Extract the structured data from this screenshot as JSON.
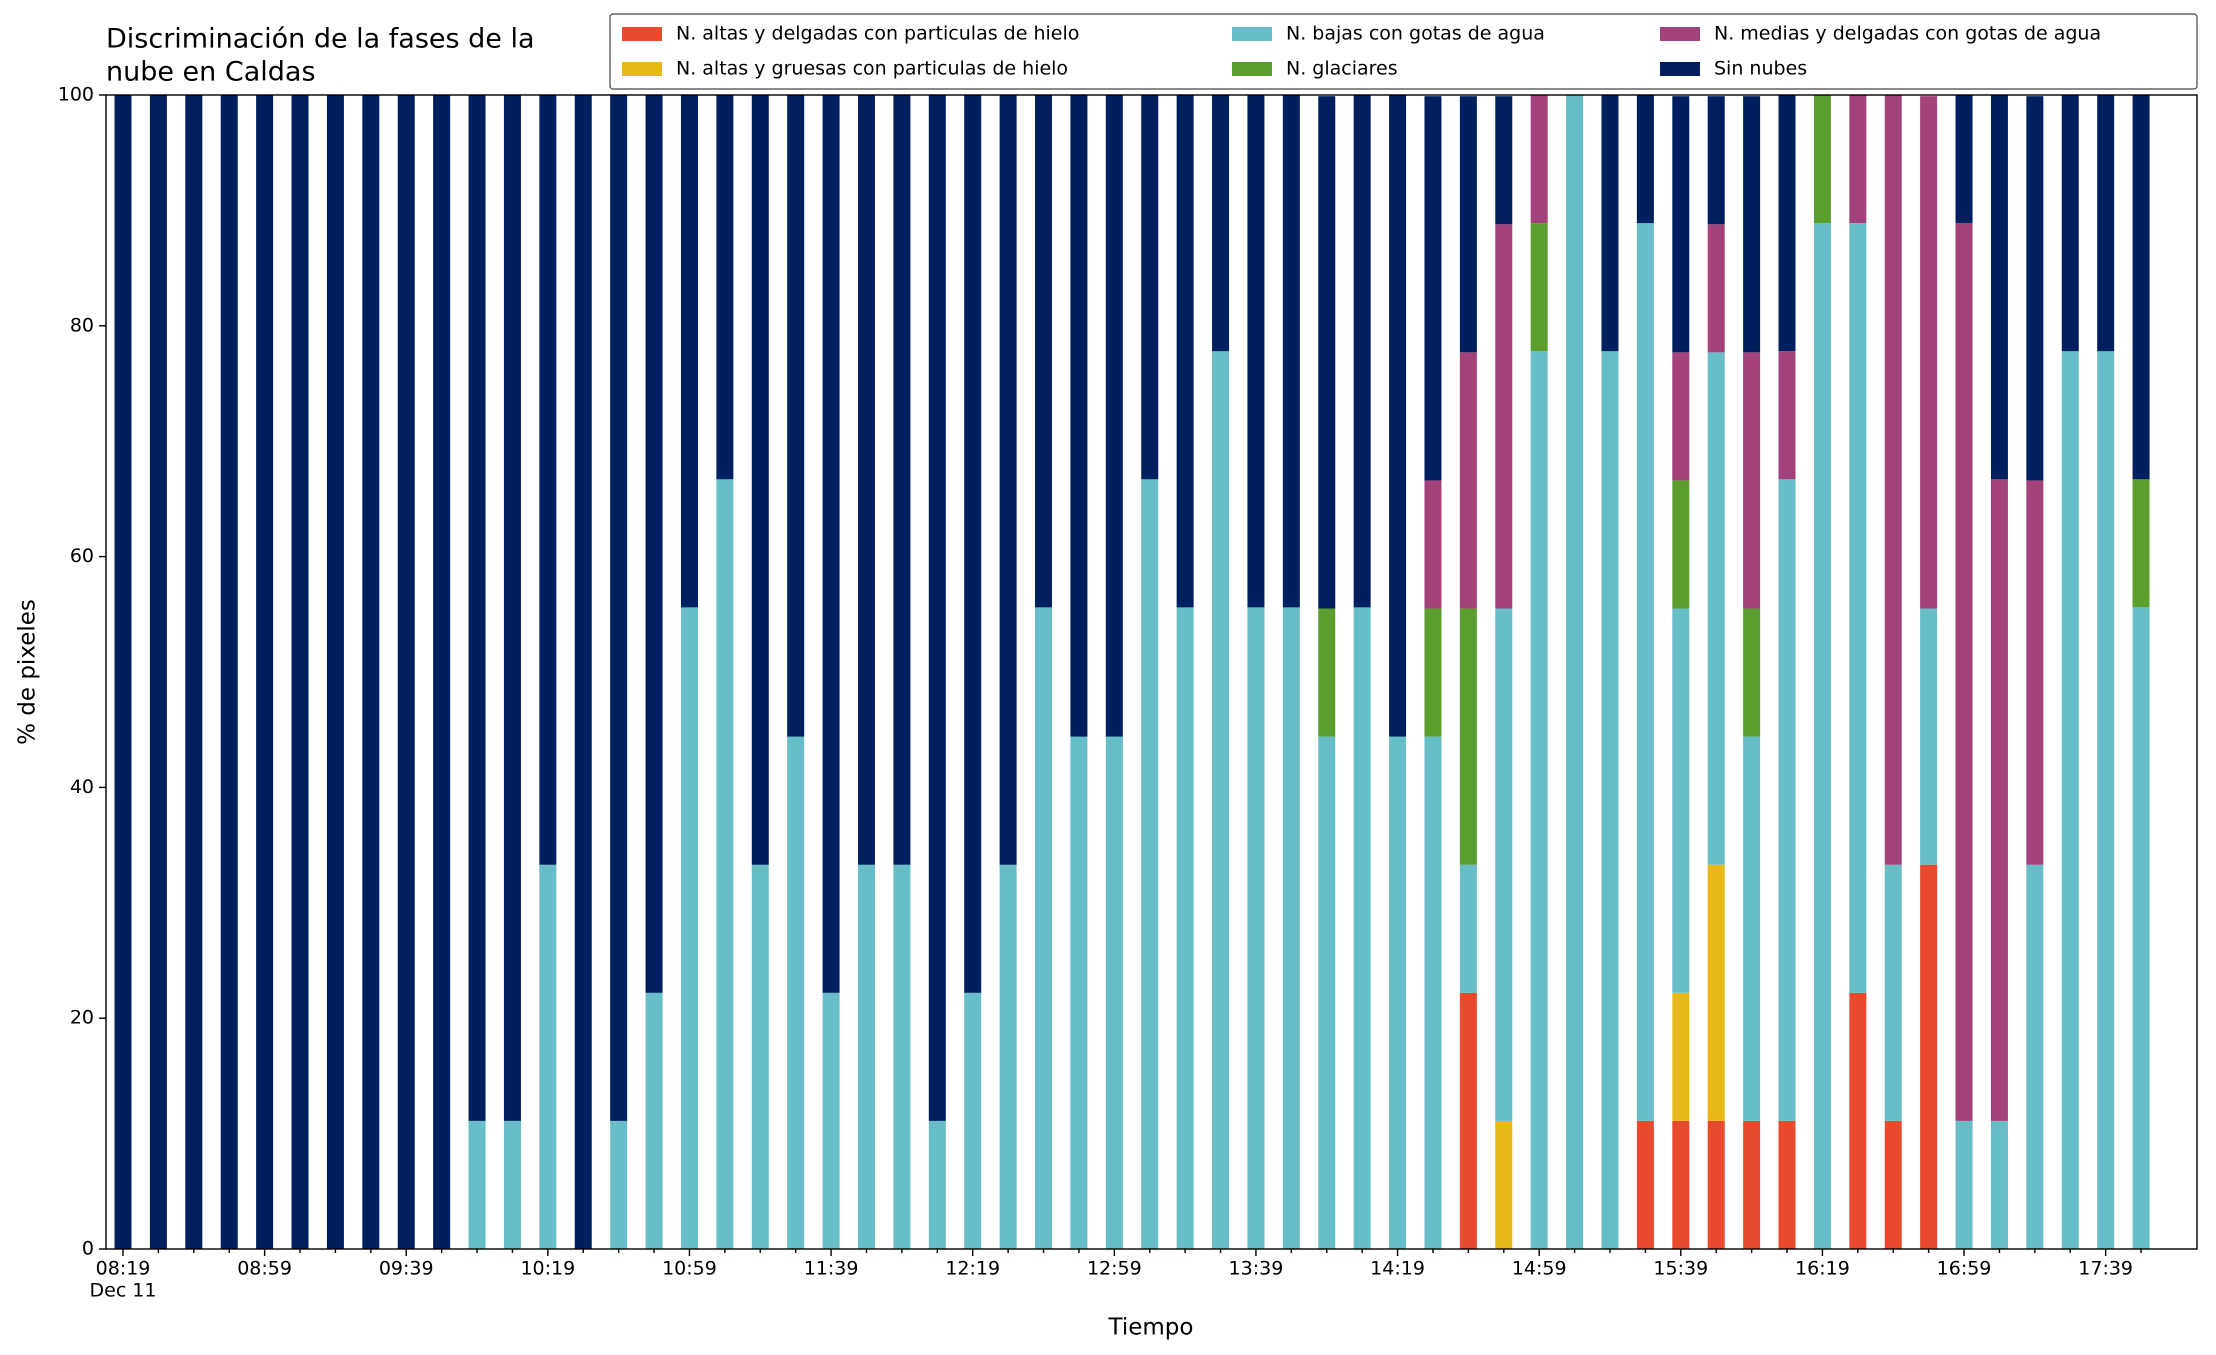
{
  "chart_data": {
    "type": "stacked_bar",
    "title": [
      "Discriminación de la fases de la",
      "nube en Caldas"
    ],
    "xlabel": "Tiempo",
    "ylabel": "% de pixeles",
    "x_sublabel": "Dec 11",
    "categories": [
      "08:19",
      null,
      null,
      null,
      "08:59",
      null,
      null,
      null,
      "09:39",
      null,
      null,
      null,
      "10:19",
      null,
      null,
      null,
      "10:59",
      null,
      null,
      null,
      "11:39",
      null,
      null,
      null,
      "12:19",
      null,
      null,
      null,
      "12:59",
      null,
      null,
      null,
      "13:39",
      null,
      null,
      null,
      "14:19",
      null,
      null,
      null,
      "14:59",
      null,
      null,
      null,
      "15:39",
      null,
      null,
      null,
      "16:19",
      null,
      null,
      null,
      "16:59",
      null,
      null,
      null,
      "17:39",
      null
    ],
    "ylim": [
      0,
      100
    ],
    "yticks": [
      0,
      20,
      40,
      60,
      80,
      100
    ],
    "legend": "upper right",
    "series": [
      {
        "name": "N. altas y delgadas con particulas de hielo",
        "color": "#e84a2e",
        "values": [
          0,
          0,
          0,
          0,
          0,
          0,
          0,
          0,
          0,
          0,
          0,
          0,
          0,
          0,
          0,
          0,
          0,
          0,
          0,
          0,
          0,
          0,
          0,
          0,
          0,
          0,
          0,
          0,
          0,
          0,
          0,
          0,
          0,
          0,
          0,
          0,
          0,
          0,
          22.2,
          0,
          0,
          0,
          0,
          11.1,
          11.1,
          11.1,
          11.1,
          11.1,
          0,
          22.2,
          11.1,
          33.3,
          0,
          0,
          0,
          0,
          0,
          0
        ]
      },
      {
        "name": "N. altas y gruesas con particulas de hielo",
        "color": "#e6b81a",
        "values": [
          0,
          0,
          0,
          0,
          0,
          0,
          0,
          0,
          0,
          0,
          0,
          0,
          0,
          0,
          0,
          0,
          0,
          0,
          0,
          0,
          0,
          0,
          0,
          0,
          0,
          0,
          0,
          0,
          0,
          0,
          0,
          0,
          0,
          0,
          0,
          0,
          0,
          0,
          0,
          11.1,
          0,
          0,
          0,
          0,
          11.1,
          22.2,
          0,
          0,
          0,
          0,
          0,
          0,
          0,
          0,
          0,
          0,
          0,
          0
        ]
      },
      {
        "name": "N. bajas con gotas de agua",
        "color": "#67bdc8",
        "values": [
          0,
          0,
          0,
          0,
          0,
          0,
          0,
          0,
          0,
          0,
          11.1,
          11.1,
          33.3,
          0,
          11.1,
          22.2,
          55.6,
          66.7,
          33.3,
          44.4,
          22.2,
          33.3,
          33.3,
          11.1,
          22.2,
          33.3,
          55.6,
          44.4,
          44.4,
          66.7,
          55.6,
          77.8,
          55.6,
          55.6,
          44.4,
          55.6,
          44.4,
          44.4,
          11.1,
          44.4,
          77.8,
          100,
          77.8,
          77.8,
          33.3,
          44.4,
          33.3,
          55.6,
          88.9,
          66.7,
          22.2,
          22.2,
          11.1,
          11.1,
          33.3,
          77.8,
          77.8,
          55.6
        ]
      },
      {
        "name": "N. glaciares",
        "color": "#5c9e2e",
        "values": [
          0,
          0,
          0,
          0,
          0,
          0,
          0,
          0,
          0,
          0,
          0,
          0,
          0,
          0,
          0,
          0,
          0,
          0,
          0,
          0,
          0,
          0,
          0,
          0,
          0,
          0,
          0,
          0,
          0,
          0,
          0,
          0,
          0,
          0,
          11.1,
          0,
          0,
          11.1,
          22.2,
          0,
          11.1,
          0,
          0,
          0,
          11.1,
          0,
          11.1,
          0,
          11.1,
          0,
          0,
          0,
          0,
          0,
          0,
          0,
          0,
          11.1
        ]
      },
      {
        "name": "N. medias y delgadas con gotas de agua",
        "color": "#a3427a",
        "values": [
          0,
          0,
          0,
          0,
          0,
          0,
          0,
          0,
          0,
          0,
          0,
          0,
          0,
          0,
          0,
          0,
          0,
          0,
          0,
          0,
          0,
          0,
          0,
          0,
          0,
          0,
          0,
          0,
          0,
          0,
          0,
          0,
          0,
          0,
          0,
          0,
          0,
          11.1,
          22.2,
          33.3,
          11.1,
          0,
          0,
          0,
          11.1,
          11.1,
          22.2,
          11.1,
          0,
          11.1,
          66.7,
          44.4,
          77.8,
          55.6,
          33.3,
          0,
          0,
          0
        ]
      },
      {
        "name": "Sin nubes",
        "color": "#001f5f",
        "values": [
          100,
          100,
          100,
          100,
          100,
          100,
          100,
          100,
          100,
          100,
          88.9,
          88.9,
          66.7,
          100,
          88.9,
          77.8,
          44.4,
          33.3,
          66.7,
          55.6,
          77.8,
          66.7,
          66.7,
          88.9,
          77.8,
          66.7,
          44.4,
          55.6,
          55.6,
          33.3,
          44.4,
          22.2,
          44.4,
          44.4,
          44.4,
          44.4,
          55.6,
          33.3,
          22.2,
          11.1,
          0,
          0,
          22.2,
          11.1,
          22.2,
          11.1,
          22.2,
          22.2,
          0,
          0,
          0,
          0,
          11.1,
          33.3,
          33.3,
          22.2,
          22.2,
          33.3
        ]
      }
    ]
  }
}
